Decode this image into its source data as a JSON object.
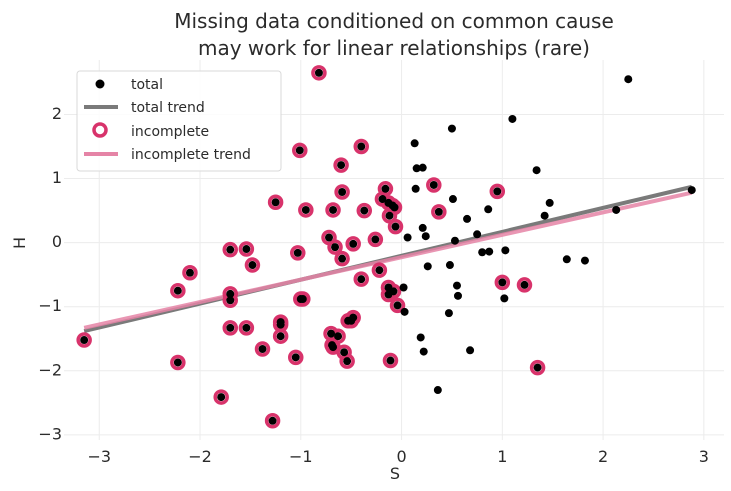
{
  "chart_data": {
    "type": "scatter",
    "title": "Missing data conditioned on common cause\nmay work for linear relationships (rare)",
    "title_lines": [
      "Missing data conditioned on common cause",
      "may work for linear relationships (rare)"
    ],
    "xlabel": "S",
    "ylabel": "H",
    "xlim": [
      -3.35,
      3.2
    ],
    "ylim": [
      -3.08,
      2.85
    ],
    "xticks": [
      -3,
      -2,
      -1,
      0,
      1,
      2,
      3
    ],
    "yticks": [
      -3,
      -2,
      -1,
      0,
      1,
      2
    ],
    "xtick_labels": [
      "−3",
      "−2",
      "−1",
      "0",
      "1",
      "2",
      "3"
    ],
    "ytick_labels": [
      "−3",
      "−2",
      "−1",
      "0",
      "1",
      "2"
    ],
    "grid": true,
    "legend_position": "top-left",
    "legend": [
      {
        "label": "total",
        "kind": "dot"
      },
      {
        "label": "total trend",
        "kind": "line"
      },
      {
        "label": "incomplete",
        "kind": "ring"
      },
      {
        "label": "incomplete trend",
        "kind": "line"
      }
    ],
    "colors": {
      "total": "#000000",
      "total_trend": "#7a7a7a",
      "incomplete": "#d8336b",
      "incomplete_trend": "#e584a6"
    },
    "series": [
      {
        "name": "total",
        "points": [
          [
            -3.15,
            -1.52
          ],
          [
            -2.22,
            -0.75
          ],
          [
            -2.22,
            -1.87
          ],
          [
            -2.1,
            -0.47
          ],
          [
            -1.79,
            -2.41
          ],
          [
            -1.7,
            -0.11
          ],
          [
            -1.7,
            -0.8
          ],
          [
            -1.7,
            -0.9
          ],
          [
            -1.7,
            -1.33
          ],
          [
            -1.54,
            -0.1
          ],
          [
            -1.54,
            -1.33
          ],
          [
            -1.48,
            -0.35
          ],
          [
            -1.38,
            -1.66
          ],
          [
            -1.28,
            -2.78
          ],
          [
            -1.25,
            0.63
          ],
          [
            -1.2,
            -1.24
          ],
          [
            -1.2,
            -1.28
          ],
          [
            -1.2,
            -1.46
          ],
          [
            -1.05,
            -1.79
          ],
          [
            -1.03,
            -0.16
          ],
          [
            -1.01,
            1.44
          ],
          [
            -1.0,
            -0.88
          ],
          [
            -0.98,
            -0.88
          ],
          [
            -0.95,
            0.51
          ],
          [
            -0.82,
            2.65
          ],
          [
            -0.72,
            0.08
          ],
          [
            -0.7,
            -1.42
          ],
          [
            -0.69,
            -1.6
          ],
          [
            -0.68,
            -1.63
          ],
          [
            -0.68,
            0.51
          ],
          [
            -0.66,
            -0.07
          ],
          [
            -0.63,
            -1.46
          ],
          [
            -0.6,
            1.21
          ],
          [
            -0.59,
            -0.25
          ],
          [
            -0.59,
            0.79
          ],
          [
            -0.57,
            -1.71
          ],
          [
            -0.54,
            -1.85
          ],
          [
            -0.53,
            -1.22
          ],
          [
            -0.5,
            -1.22
          ],
          [
            -0.48,
            -1.17
          ],
          [
            -0.48,
            -0.02
          ],
          [
            -0.4,
            1.5
          ],
          [
            -0.4,
            -0.57
          ],
          [
            -0.37,
            0.5
          ],
          [
            -0.26,
            0.05
          ],
          [
            -0.22,
            -0.43
          ],
          [
            -0.19,
            0.68
          ],
          [
            -0.16,
            0.84
          ],
          [
            -0.13,
            0.62
          ],
          [
            -0.13,
            -0.7
          ],
          [
            -0.13,
            -0.81
          ],
          [
            -0.12,
            0.42
          ],
          [
            -0.11,
            -1.84
          ],
          [
            -0.09,
            0.58
          ],
          [
            -0.08,
            -0.76
          ],
          [
            -0.07,
            0.55
          ],
          [
            -0.06,
            0.25
          ],
          [
            -0.04,
            -0.98
          ],
          [
            0.02,
            -0.7
          ],
          [
            0.03,
            -1.08
          ],
          [
            0.06,
            0.08
          ],
          [
            0.13,
            1.55
          ],
          [
            0.14,
            0.84
          ],
          [
            0.15,
            1.16
          ],
          [
            0.19,
            -1.48
          ],
          [
            0.21,
            1.17
          ],
          [
            0.21,
            0.23
          ],
          [
            0.22,
            -1.7
          ],
          [
            0.24,
            0.1
          ],
          [
            0.26,
            -0.37
          ],
          [
            0.32,
            0.9
          ],
          [
            0.36,
            -2.3
          ],
          [
            0.37,
            0.48
          ],
          [
            0.47,
            -1.1
          ],
          [
            0.48,
            -0.35
          ],
          [
            0.5,
            1.78
          ],
          [
            0.51,
            0.68
          ],
          [
            0.53,
            0.03
          ],
          [
            0.55,
            -0.67
          ],
          [
            0.56,
            -0.83
          ],
          [
            0.65,
            0.37
          ],
          [
            0.68,
            -1.68
          ],
          [
            0.75,
            0.13
          ],
          [
            0.8,
            -0.15
          ],
          [
            0.86,
            0.52
          ],
          [
            0.87,
            -0.14
          ],
          [
            0.95,
            0.8
          ],
          [
            1.0,
            -0.62
          ],
          [
            1.02,
            -0.87
          ],
          [
            1.03,
            -0.12
          ],
          [
            1.1,
            1.93
          ],
          [
            1.22,
            -0.66
          ],
          [
            1.34,
            1.13
          ],
          [
            1.35,
            -1.95
          ],
          [
            1.42,
            0.42
          ],
          [
            1.47,
            0.62
          ],
          [
            1.64,
            -0.26
          ],
          [
            1.82,
            -0.28
          ],
          [
            2.13,
            0.51
          ],
          [
            2.25,
            2.55
          ],
          [
            2.88,
            0.82
          ]
        ]
      },
      {
        "name": "incomplete",
        "points": [
          [
            -3.15,
            -1.52
          ],
          [
            -2.22,
            -0.75
          ],
          [
            -2.22,
            -1.87
          ],
          [
            -2.1,
            -0.47
          ],
          [
            -1.79,
            -2.41
          ],
          [
            -1.7,
            -0.11
          ],
          [
            -1.7,
            -0.8
          ],
          [
            -1.7,
            -0.9
          ],
          [
            -1.7,
            -1.33
          ],
          [
            -1.54,
            -0.1
          ],
          [
            -1.54,
            -1.33
          ],
          [
            -1.48,
            -0.35
          ],
          [
            -1.38,
            -1.66
          ],
          [
            -1.28,
            -2.78
          ],
          [
            -1.25,
            0.63
          ],
          [
            -1.2,
            -1.24
          ],
          [
            -1.2,
            -1.28
          ],
          [
            -1.2,
            -1.46
          ],
          [
            -1.05,
            -1.79
          ],
          [
            -1.03,
            -0.16
          ],
          [
            -1.01,
            1.44
          ],
          [
            -1.0,
            -0.88
          ],
          [
            -0.98,
            -0.88
          ],
          [
            -0.95,
            0.51
          ],
          [
            -0.82,
            2.65
          ],
          [
            -0.72,
            0.08
          ],
          [
            -0.7,
            -1.42
          ],
          [
            -0.69,
            -1.6
          ],
          [
            -0.68,
            -1.63
          ],
          [
            -0.68,
            0.51
          ],
          [
            -0.66,
            -0.07
          ],
          [
            -0.63,
            -1.46
          ],
          [
            -0.6,
            1.21
          ],
          [
            -0.59,
            -0.25
          ],
          [
            -0.59,
            0.79
          ],
          [
            -0.57,
            -1.71
          ],
          [
            -0.54,
            -1.85
          ],
          [
            -0.53,
            -1.22
          ],
          [
            -0.5,
            -1.22
          ],
          [
            -0.48,
            -1.17
          ],
          [
            -0.48,
            -0.02
          ],
          [
            -0.4,
            1.5
          ],
          [
            -0.4,
            -0.57
          ],
          [
            -0.37,
            0.5
          ],
          [
            -0.26,
            0.05
          ],
          [
            -0.22,
            -0.43
          ],
          [
            -0.19,
            0.68
          ],
          [
            -0.16,
            0.84
          ],
          [
            -0.13,
            0.62
          ],
          [
            -0.13,
            -0.7
          ],
          [
            -0.13,
            -0.81
          ],
          [
            -0.12,
            0.42
          ],
          [
            -0.11,
            -1.84
          ],
          [
            -0.09,
            0.58
          ],
          [
            -0.08,
            -0.76
          ],
          [
            -0.07,
            0.55
          ],
          [
            -0.06,
            0.25
          ],
          [
            -0.04,
            -0.98
          ],
          [
            0.32,
            0.9
          ],
          [
            0.37,
            0.48
          ],
          [
            0.95,
            0.8
          ],
          [
            1.0,
            -0.62
          ],
          [
            1.22,
            -0.66
          ],
          [
            1.35,
            -1.95
          ]
        ]
      }
    ],
    "trend_lines": [
      {
        "name": "total trend",
        "x": [
          -3.15,
          2.88
        ],
        "y": [
          -1.38,
          0.87
        ]
      },
      {
        "name": "incomplete trend",
        "x": [
          -3.15,
          2.88
        ],
        "y": [
          -1.33,
          0.78
        ]
      }
    ]
  }
}
